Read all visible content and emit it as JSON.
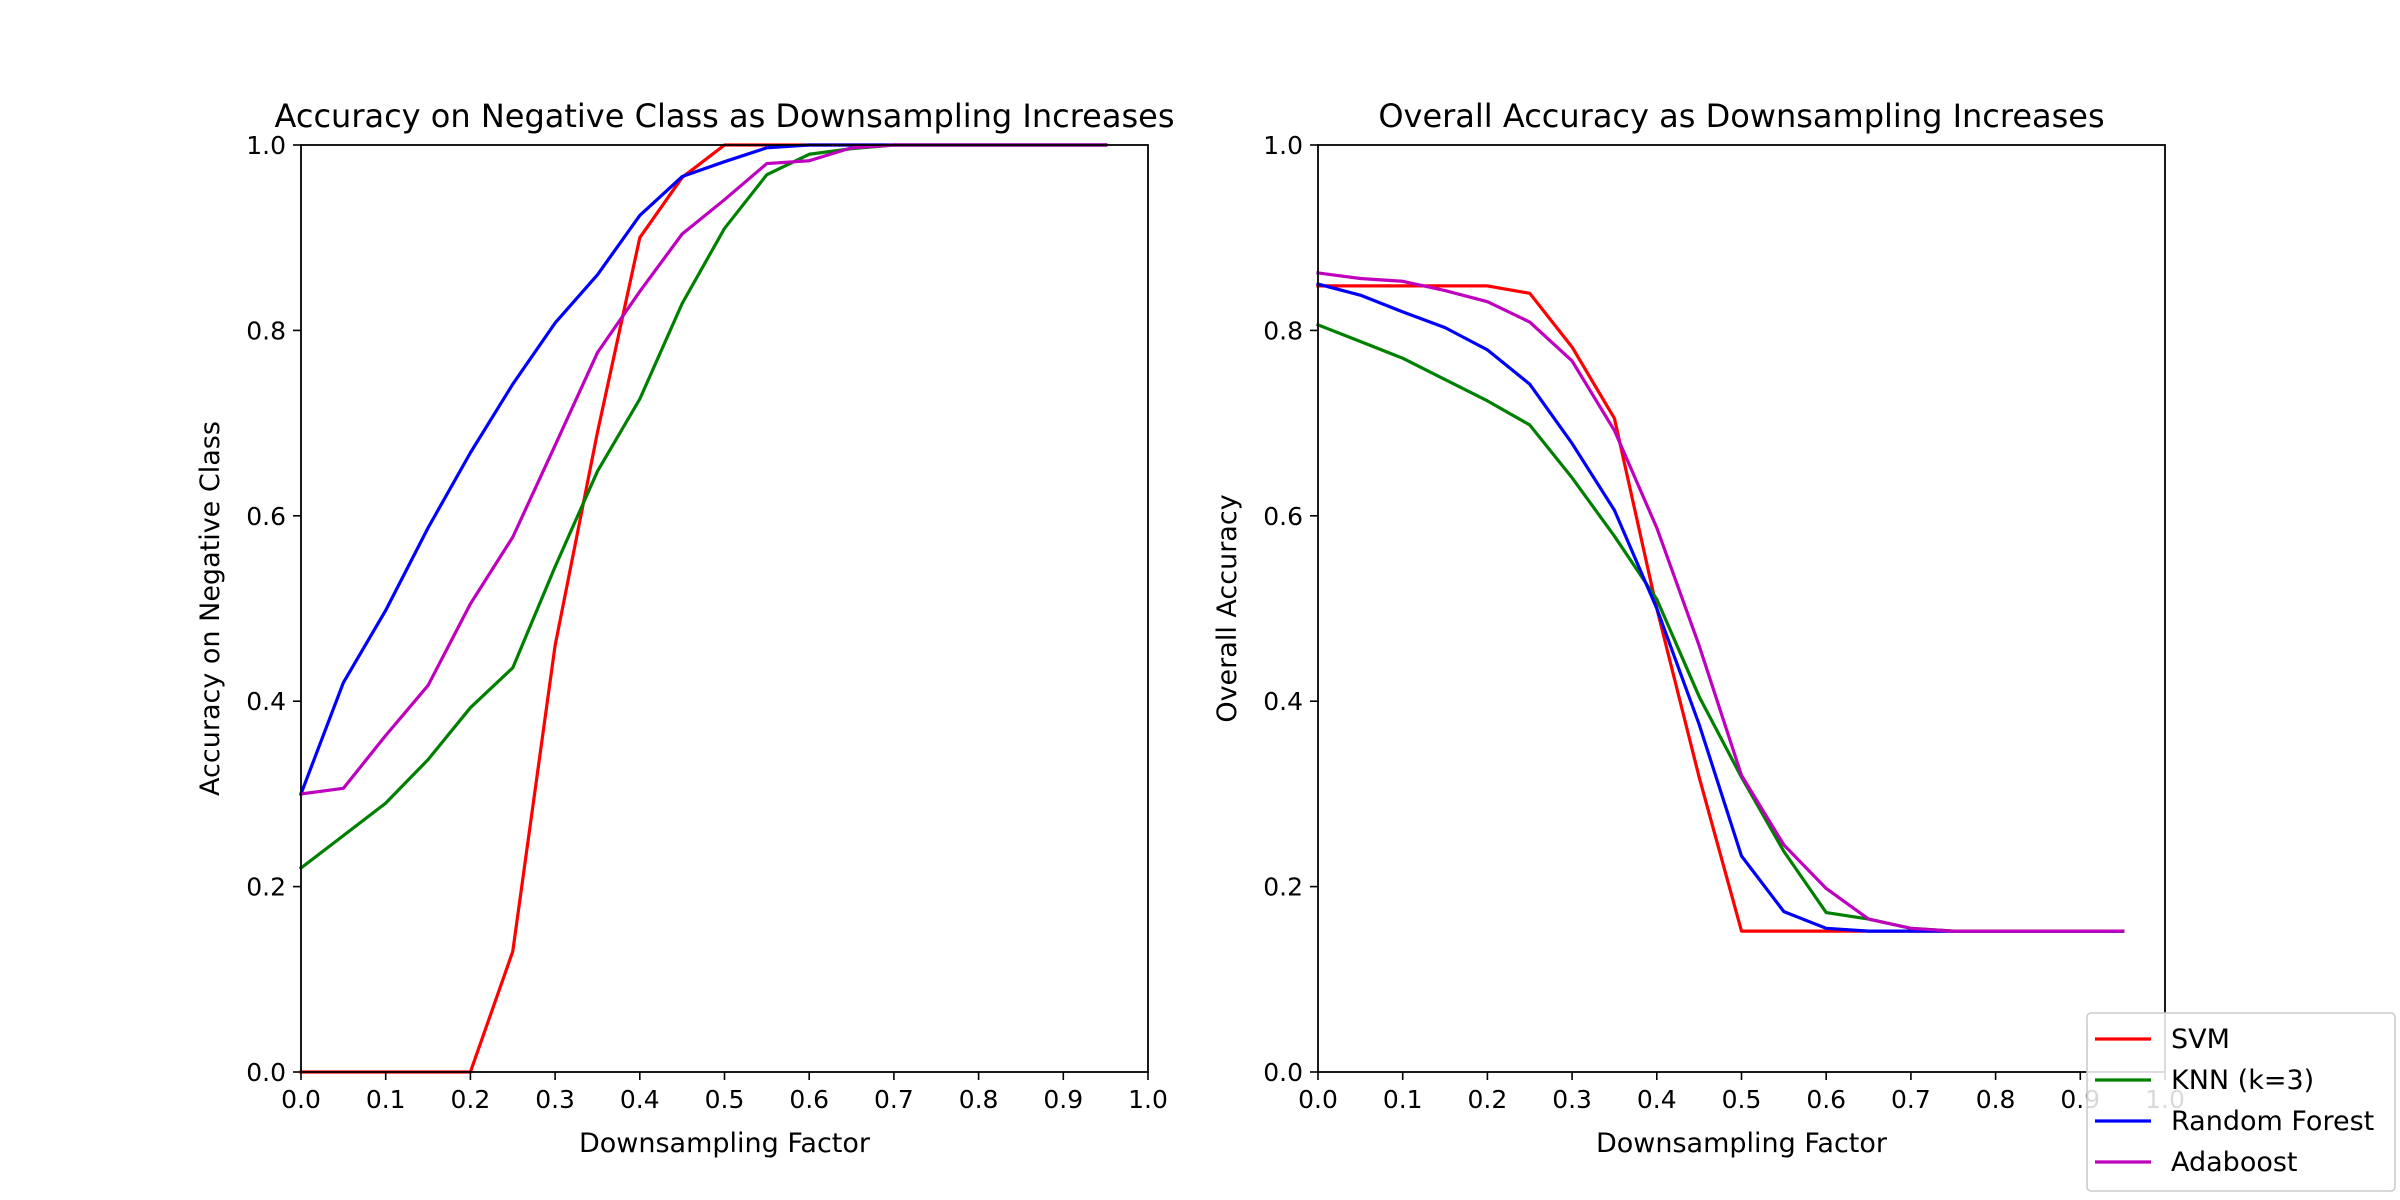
{
  "chart_data": [
    {
      "type": "line",
      "title": "Accuracy on Negative Class as Downsampling Increases",
      "xlabel": "Downsampling Factor",
      "ylabel": "Accuracy on Negative Class",
      "xlim": [
        0,
        1
      ],
      "ylim": [
        0,
        1
      ],
      "xticks": [
        "0.0",
        "0.1",
        "0.2",
        "0.3",
        "0.4",
        "0.5",
        "0.6",
        "0.7",
        "0.8",
        "0.9",
        "1.0"
      ],
      "yticks": [
        "0.0",
        "0.2",
        "0.4",
        "0.6",
        "0.8",
        "1.0"
      ],
      "grid": false,
      "x": [
        0.0,
        0.05,
        0.1,
        0.15,
        0.2,
        0.25,
        0.3,
        0.35,
        0.4,
        0.45,
        0.5,
        0.55,
        0.6,
        0.65,
        0.7,
        0.75,
        0.8,
        0.85,
        0.9,
        0.95
      ],
      "series": [
        {
          "name": "SVM",
          "color": "#ff0000",
          "values": [
            0.0,
            0.0,
            0.0,
            0.0,
            0.0,
            0.13,
            0.46,
            0.69,
            0.9,
            0.965,
            1.0,
            1.0,
            1.0,
            1.0,
            1.0,
            1.0,
            1.0,
            1.0,
            1.0,
            1.0
          ]
        },
        {
          "name": "KNN (k=3)",
          "color": "#008000",
          "values": [
            0.22,
            0.255,
            0.29,
            0.337,
            0.393,
            0.436,
            0.545,
            0.648,
            0.726,
            0.829,
            0.91,
            0.968,
            0.99,
            0.996,
            1.0,
            1.0,
            1.0,
            1.0,
            1.0,
            1.0
          ]
        },
        {
          "name": "Random Forest",
          "color": "#0000ff",
          "values": [
            0.3,
            0.42,
            0.498,
            0.587,
            0.668,
            0.742,
            0.808,
            0.86,
            0.924,
            0.966,
            0.982,
            0.997,
            1.0,
            1.0,
            1.0,
            1.0,
            1.0,
            1.0,
            1.0,
            1.0
          ]
        },
        {
          "name": "Adaboost",
          "color": "#bf00bf",
          "values": [
            0.3,
            0.306,
            0.363,
            0.417,
            0.505,
            0.577,
            0.676,
            0.776,
            0.842,
            0.904,
            0.941,
            0.98,
            0.983,
            0.997,
            1.0,
            1.0,
            1.0,
            1.0,
            1.0,
            1.0
          ]
        }
      ]
    },
    {
      "type": "line",
      "title": "Overall Accuracy as Downsampling Increases",
      "xlabel": "Downsampling Factor",
      "ylabel": "Overall Accuracy",
      "xlim": [
        0,
        1
      ],
      "ylim": [
        0,
        1
      ],
      "xticks": [
        "0.0",
        "0.1",
        "0.2",
        "0.3",
        "0.4",
        "0.5",
        "0.6",
        "0.7",
        "0.8",
        "0.9",
        "1.0"
      ],
      "yticks": [
        "0.0",
        "0.2",
        "0.4",
        "0.6",
        "0.8",
        "1.0"
      ],
      "grid": false,
      "legend_position": "lower-right",
      "x": [
        0.0,
        0.05,
        0.1,
        0.15,
        0.2,
        0.25,
        0.3,
        0.35,
        0.4,
        0.45,
        0.5,
        0.55,
        0.6,
        0.65,
        0.7,
        0.75,
        0.8,
        0.85,
        0.9,
        0.95
      ],
      "series": [
        {
          "name": "SVM",
          "color": "#ff0000",
          "values": [
            0.848,
            0.848,
            0.848,
            0.848,
            0.848,
            0.84,
            0.782,
            0.705,
            0.5,
            0.318,
            0.152,
            0.152,
            0.152,
            0.152,
            0.152,
            0.152,
            0.152,
            0.152,
            0.152,
            0.152
          ]
        },
        {
          "name": "KNN (k=3)",
          "color": "#008000",
          "values": [
            0.806,
            0.788,
            0.77,
            0.747,
            0.724,
            0.698,
            0.641,
            0.578,
            0.51,
            0.405,
            0.318,
            0.238,
            0.172,
            0.165,
            0.155,
            0.152,
            0.152,
            0.152,
            0.152,
            0.152
          ]
        },
        {
          "name": "Random Forest",
          "color": "#0000ff",
          "values": [
            0.85,
            0.838,
            0.82,
            0.803,
            0.779,
            0.742,
            0.678,
            0.606,
            0.5,
            0.375,
            0.233,
            0.173,
            0.155,
            0.152,
            0.152,
            0.152,
            0.152,
            0.152,
            0.152,
            0.152
          ]
        },
        {
          "name": "Adaboost",
          "color": "#bf00bf",
          "values": [
            0.862,
            0.856,
            0.853,
            0.843,
            0.831,
            0.809,
            0.767,
            0.692,
            0.587,
            0.46,
            0.32,
            0.245,
            0.198,
            0.165,
            0.155,
            0.152,
            0.152,
            0.152,
            0.152,
            0.152
          ]
        }
      ]
    }
  ]
}
